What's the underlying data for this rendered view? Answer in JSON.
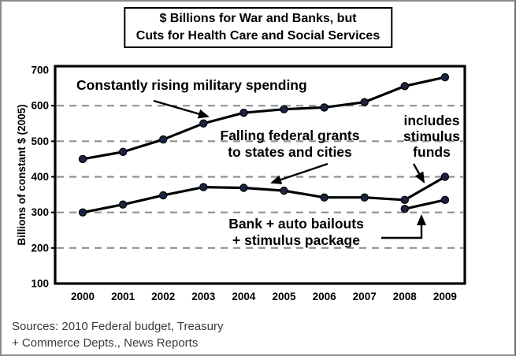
{
  "title_box": {
    "line1": "$ Billions for War and Banks, but",
    "line2": "Cuts for Health Care and Social Services"
  },
  "annotations": {
    "military": "Constantly rising military spending",
    "grants_line1": "Falling federal grants",
    "grants_line2": "to states and cities",
    "stimulus_line1": "includes",
    "stimulus_line2": "stimulus",
    "stimulus_line3": "funds",
    "bailouts_line1": "Bank + auto bailouts",
    "bailouts_line2": "+ stimulus package"
  },
  "source": {
    "line1": "Sources: 2010 Federal budget, Treasury",
    "line2": "+ Commerce Depts., News Reports"
  },
  "chart_data": {
    "type": "line",
    "title": "$ Billions for War and Banks, but Cuts for Health Care and Social Services",
    "xlabel": "",
    "ylabel": "Billions of constant $ (2005)",
    "x": [
      2000,
      2001,
      2002,
      2003,
      2004,
      2005,
      2006,
      2007,
      2008,
      2009
    ],
    "series": [
      {
        "name": "Constantly rising military spending",
        "x": [
          2000,
          2001,
          2002,
          2003,
          2004,
          2005,
          2006,
          2007,
          2008,
          2009
        ],
        "values": [
          450,
          470,
          505,
          550,
          580,
          590,
          595,
          610,
          655,
          680
        ]
      },
      {
        "name": "Falling federal grants to states and cities (2009 includes stimulus funds)",
        "x": [
          2000,
          2001,
          2002,
          2003,
          2004,
          2005,
          2006,
          2007,
          2008,
          2009
        ],
        "values": [
          300,
          322,
          348,
          371,
          369,
          361,
          342,
          342,
          335,
          400
        ]
      },
      {
        "name": "Bank + auto bailouts + stimulus package",
        "x": [
          2008,
          2009
        ],
        "values": [
          310,
          335
        ]
      }
    ],
    "ylim": [
      100,
      700
    ],
    "yticks": [
      100,
      200,
      300,
      400,
      500,
      600,
      700
    ],
    "gridline_values": [
      200,
      300,
      400,
      500,
      600
    ],
    "grid_style": "horizontal dashed",
    "legend": "none (annotated with arrows)",
    "line_color": "#000000",
    "marker_color": "#1c2342",
    "grid_color": "#909090"
  }
}
